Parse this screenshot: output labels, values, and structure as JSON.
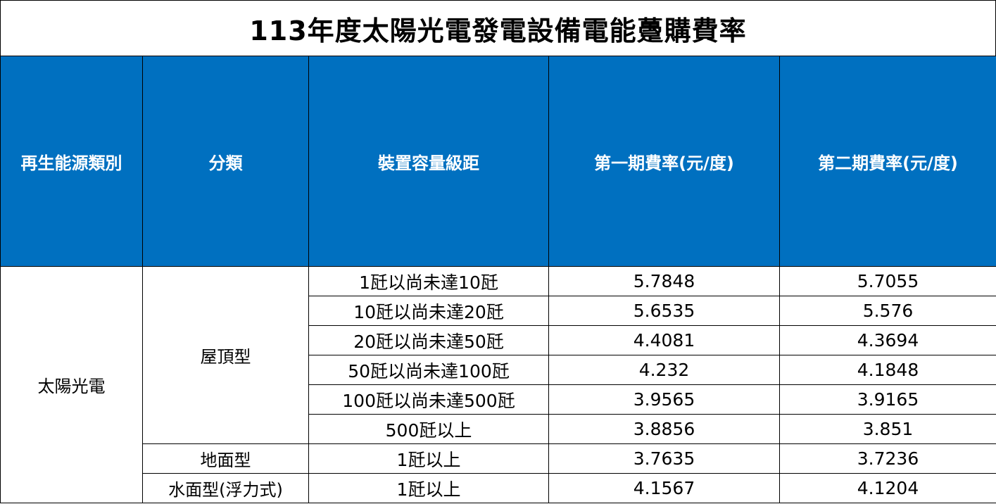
{
  "title": "113年度太陽光電發電設備電能躉購費率",
  "colors": {
    "header_bg": "#0070c0",
    "header_text": "#ffffff",
    "grid": "#000000"
  },
  "headers": [
    "再生能源類別",
    "分類",
    "裝置容量級距",
    "第一期費率(元/度)",
    "第二期費率(元/度)"
  ],
  "category": "太陽光電",
  "groups": [
    {
      "name": "屋頂型",
      "rows": [
        {
          "range": "1瓩以尚未達10瓩",
          "rate1": "5.7848",
          "rate2": "5.7055"
        },
        {
          "range": "10瓩以尚未達20瓩",
          "rate1": "5.6535",
          "rate2": "5.576"
        },
        {
          "range": "20瓩以尚未達50瓩",
          "rate1": "4.4081",
          "rate2": "4.3694"
        },
        {
          "range": "50瓩以尚未達100瓩",
          "rate1": "4.232",
          "rate2": "4.1848"
        },
        {
          "range": "100瓩以尚未達500瓩",
          "rate1": "3.9565",
          "rate2": "3.9165"
        },
        {
          "range": "500瓩以上",
          "rate1": "3.8856",
          "rate2": "3.851"
        }
      ]
    },
    {
      "name": "地面型",
      "rows": [
        {
          "range": "1瓩以上",
          "rate1": "3.7635",
          "rate2": "3.7236"
        }
      ]
    },
    {
      "name": "水面型(浮力式)",
      "rows": [
        {
          "range": "1瓩以上",
          "rate1": "4.1567",
          "rate2": "4.1204"
        }
      ]
    }
  ]
}
